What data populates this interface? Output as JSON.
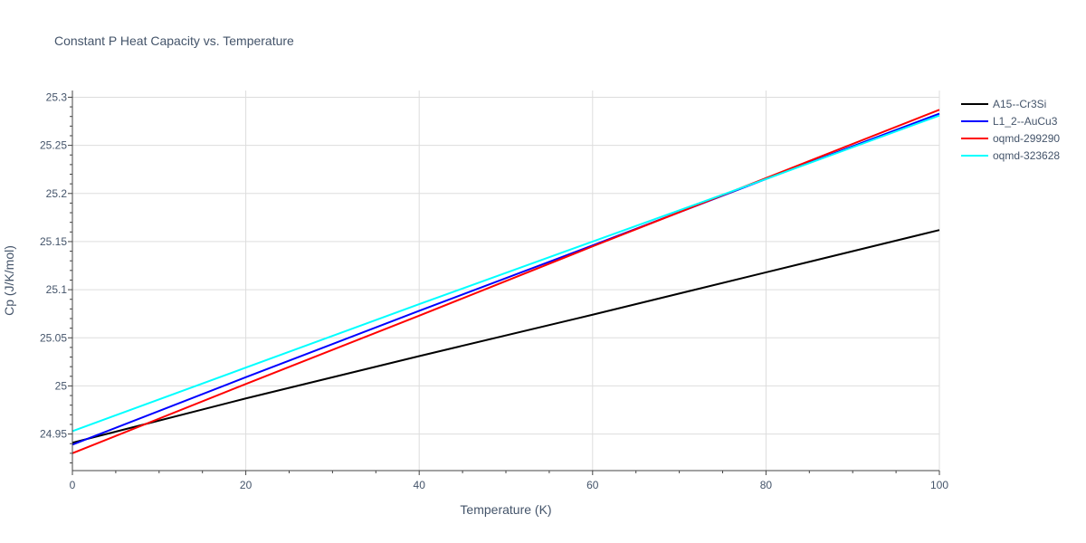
{
  "chart_data": {
    "type": "line",
    "title": "Constant P Heat Capacity vs. Temperature",
    "xlabel": "Temperature (K)",
    "ylabel": "Cp (J/K/mol)",
    "xlim": [
      0,
      100
    ],
    "ylim": [
      24.912,
      25.307
    ],
    "x_ticks": [
      0,
      20,
      40,
      60,
      80,
      100
    ],
    "x_tick_labels": [
      "0",
      "20",
      "40",
      "60",
      "80",
      "100"
    ],
    "y_ticks": [
      24.95,
      25.0,
      25.05,
      25.1,
      25.15,
      25.2,
      25.25,
      25.3
    ],
    "y_tick_labels": [
      "24.95",
      "25",
      "25.05",
      "25.1",
      "25.15",
      "25.2",
      "25.25",
      "25.3"
    ],
    "grid": true,
    "legend_position": "top-right",
    "x": [
      0,
      20,
      40,
      60,
      80,
      100
    ],
    "series": [
      {
        "name": "A15--Cr3Si",
        "color": "#000000",
        "values": [
          24.941,
          24.987,
          25.031,
          25.074,
          25.118,
          25.162
        ]
      },
      {
        "name": "L1_2--AuCu3",
        "color": "#0000ff",
        "values": [
          24.939,
          25.009,
          25.078,
          25.146,
          25.215,
          25.283
        ]
      },
      {
        "name": "oqmd-299290",
        "color": "#ff0000",
        "values": [
          24.93,
          25.002,
          25.073,
          25.145,
          25.216,
          25.287
        ]
      },
      {
        "name": "oqmd-323628",
        "color": "#00ffff",
        "values": [
          24.953,
          25.019,
          25.085,
          25.15,
          25.215,
          25.281
        ]
      }
    ]
  }
}
